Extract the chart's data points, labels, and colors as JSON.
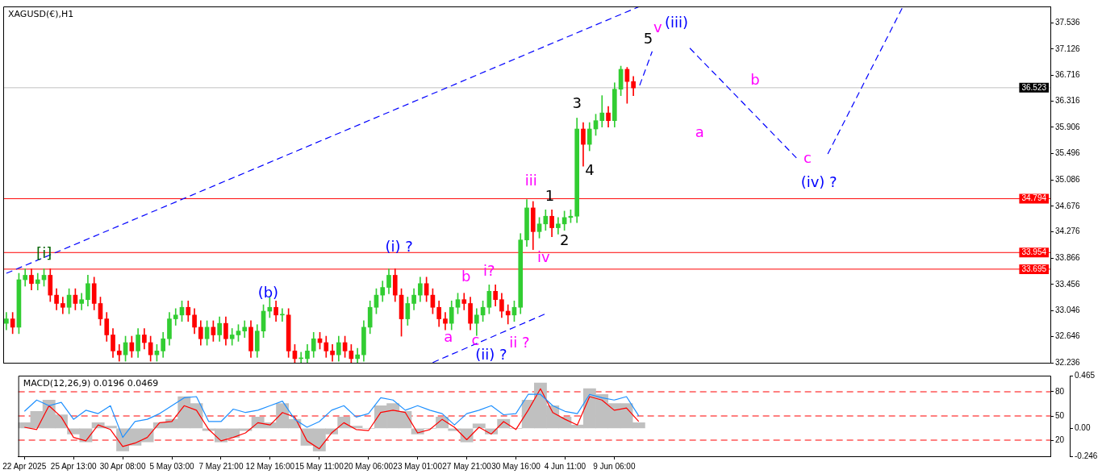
{
  "chart_data": [
    {
      "type": "candlestick",
      "title": "XAGUSD(€),H1",
      "tick_labels": "y",
      "ylim": [
        32.236,
        37.79
      ],
      "yticks": [
        32.236,
        32.646,
        33.046,
        33.456,
        33.866,
        34.276,
        34.676,
        35.086,
        35.496,
        35.906,
        36.316,
        36.716,
        37.126,
        37.536
      ],
      "categories": [
        null,
        null,
        null,
        null,
        null,
        null,
        null,
        null,
        null,
        null,
        null,
        null,
        null,
        null,
        null,
        null,
        null,
        null,
        null,
        null,
        null,
        null,
        null,
        null,
        null,
        null,
        null,
        null,
        null,
        null,
        null,
        null,
        null,
        null,
        null,
        null,
        null,
        null,
        null,
        null,
        null,
        null,
        null,
        null,
        null,
        null,
        null,
        null,
        null,
        null,
        null,
        null,
        null,
        null,
        null,
        null,
        null,
        null,
        null,
        null,
        null,
        null,
        null,
        null,
        null,
        null,
        null,
        null,
        null,
        null,
        null,
        null,
        null,
        null,
        null,
        null,
        null,
        null,
        null,
        null,
        null,
        null,
        null,
        null,
        null,
        null,
        null,
        null,
        null,
        null,
        null,
        null,
        null,
        null,
        null,
        null,
        null,
        null,
        null,
        null,
        null,
        null,
        null,
        null,
        null,
        null,
        null,
        null,
        null,
        null,
        null,
        null,
        null,
        null,
        null,
        null,
        null,
        null,
        null,
        null,
        null,
        null,
        null,
        null,
        null,
        null,
        null,
        null,
        null,
        null,
        null,
        null,
        null,
        null,
        null,
        null,
        null,
        null,
        null,
        null,
        null,
        null,
        null,
        null,
        null,
        null,
        null,
        null,
        null,
        null,
        null,
        null,
        null,
        null,
        null,
        null,
        null,
        null,
        null,
        null,
        null,
        null,
        null,
        null,
        null,
        null,
        null
      ],
      "ohlc": [
        [
          32.85,
          33.02,
          32.75,
          32.92
        ],
        [
          32.92,
          33.02,
          32.69,
          32.79
        ],
        [
          32.79,
          33.63,
          32.69,
          33.53
        ],
        [
          33.53,
          33.7,
          33.43,
          33.6
        ],
        [
          33.6,
          33.7,
          33.37,
          33.47
        ],
        [
          33.47,
          33.63,
          33.37,
          33.53
        ],
        [
          33.53,
          33.7,
          33.43,
          33.6
        ],
        [
          33.6,
          33.7,
          33.19,
          33.29
        ],
        [
          33.29,
          33.39,
          33.06,
          33.16
        ],
        [
          33.16,
          33.26,
          33.0,
          33.1
        ],
        [
          33.1,
          33.39,
          33.0,
          33.29
        ],
        [
          33.29,
          33.39,
          33.06,
          33.16
        ],
        [
          33.16,
          33.32,
          33.06,
          33.22
        ],
        [
          33.22,
          33.6,
          33.12,
          33.47
        ],
        [
          33.47,
          33.57,
          33.06,
          33.16
        ],
        [
          33.16,
          33.26,
          32.82,
          32.92
        ],
        [
          32.92,
          33.02,
          32.57,
          32.67
        ],
        [
          32.67,
          32.77,
          32.32,
          32.42
        ],
        [
          32.42,
          32.52,
          32.26,
          32.36
        ],
        [
          32.36,
          32.65,
          32.26,
          32.55
        ],
        [
          32.55,
          32.65,
          32.32,
          32.42
        ],
        [
          32.42,
          32.77,
          32.32,
          32.67
        ],
        [
          32.67,
          32.77,
          32.45,
          32.55
        ],
        [
          32.55,
          32.65,
          32.26,
          32.36
        ],
        [
          32.36,
          32.52,
          32.26,
          32.42
        ],
        [
          32.42,
          32.71,
          32.32,
          32.61
        ],
        [
          32.61,
          33.02,
          32.51,
          32.92
        ],
        [
          32.92,
          33.08,
          32.82,
          32.98
        ],
        [
          32.98,
          33.2,
          32.88,
          33.1
        ],
        [
          33.1,
          33.2,
          32.88,
          32.98
        ],
        [
          32.98,
          33.08,
          32.69,
          32.79
        ],
        [
          32.79,
          32.89,
          32.51,
          32.61
        ],
        [
          32.61,
          32.89,
          32.51,
          32.79
        ],
        [
          32.79,
          32.89,
          32.57,
          32.67
        ],
        [
          32.67,
          32.95,
          32.57,
          32.85
        ],
        [
          32.85,
          32.95,
          32.51,
          32.61
        ],
        [
          32.61,
          32.77,
          32.51,
          32.67
        ],
        [
          32.67,
          32.83,
          32.57,
          32.73
        ],
        [
          32.73,
          32.89,
          32.63,
          32.79
        ],
        [
          32.79,
          32.89,
          32.32,
          32.42
        ],
        [
          32.42,
          32.83,
          32.32,
          32.73
        ],
        [
          32.73,
          33.14,
          32.63,
          33.04
        ],
        [
          33.04,
          33.25,
          32.94,
          33.1
        ],
        [
          33.1,
          33.2,
          32.88,
          32.98
        ],
        [
          32.98,
          33.08,
          32.88,
          32.98
        ],
        [
          32.98,
          33.08,
          32.32,
          32.42
        ],
        [
          32.42,
          32.52,
          32.24,
          32.3
        ],
        [
          32.3,
          32.4,
          32.24,
          32.3
        ],
        [
          32.3,
          32.52,
          32.24,
          32.42
        ],
        [
          32.42,
          32.71,
          32.32,
          32.61
        ],
        [
          32.61,
          32.71,
          32.45,
          32.55
        ],
        [
          32.55,
          32.65,
          32.32,
          32.42
        ],
        [
          32.42,
          32.52,
          32.26,
          32.36
        ],
        [
          32.36,
          32.65,
          32.26,
          32.55
        ],
        [
          32.55,
          32.65,
          32.32,
          32.42
        ],
        [
          32.42,
          32.52,
          32.24,
          32.3
        ],
        [
          32.3,
          32.46,
          32.24,
          32.36
        ],
        [
          32.36,
          32.89,
          32.26,
          32.79
        ],
        [
          32.79,
          33.2,
          32.69,
          33.1
        ],
        [
          33.1,
          33.39,
          33.0,
          33.29
        ],
        [
          33.29,
          33.51,
          33.19,
          33.41
        ],
        [
          33.41,
          33.7,
          33.31,
          33.6
        ],
        [
          33.6,
          33.7,
          33.19,
          33.29
        ],
        [
          33.29,
          33.39,
          32.65,
          32.92
        ],
        [
          32.92,
          33.26,
          32.82,
          33.16
        ],
        [
          33.16,
          33.39,
          33.06,
          33.29
        ],
        [
          33.29,
          33.57,
          33.19,
          33.47
        ],
        [
          33.47,
          33.57,
          33.19,
          33.29
        ],
        [
          33.29,
          33.39,
          33.0,
          33.1
        ],
        [
          33.1,
          33.2,
          32.8,
          32.92
        ],
        [
          32.92,
          33.02,
          32.75,
          32.85
        ],
        [
          32.85,
          33.2,
          32.75,
          33.1
        ],
        [
          33.1,
          33.32,
          33.0,
          33.22
        ],
        [
          33.22,
          33.32,
          33.06,
          33.16
        ],
        [
          33.16,
          33.26,
          32.75,
          32.85
        ],
        [
          32.85,
          33.08,
          32.66,
          32.98
        ],
        [
          32.98,
          33.2,
          32.88,
          33.1
        ],
        [
          33.1,
          33.45,
          33.0,
          33.35
        ],
        [
          33.35,
          33.45,
          33.12,
          33.22
        ],
        [
          33.22,
          33.32,
          32.94,
          33.04
        ],
        [
          33.04,
          33.14,
          32.84,
          32.98
        ],
        [
          32.98,
          33.2,
          32.88,
          33.1
        ],
        [
          33.1,
          34.25,
          33.0,
          34.15
        ],
        [
          34.15,
          34.78,
          34.05,
          34.65
        ],
        [
          34.65,
          34.75,
          34.0,
          34.28
        ],
        [
          34.28,
          34.5,
          34.18,
          34.4
        ],
        [
          34.4,
          34.62,
          34.3,
          34.52
        ],
        [
          34.52,
          34.62,
          34.2,
          34.34
        ],
        [
          34.34,
          34.5,
          34.24,
          34.4
        ],
        [
          34.4,
          34.6,
          34.3,
          34.5
        ],
        [
          34.5,
          34.62,
          34.42,
          34.52
        ],
        [
          34.52,
          36.05,
          34.42,
          35.88
        ],
        [
          35.88,
          35.98,
          35.3,
          35.64
        ],
        [
          35.64,
          35.98,
          35.54,
          35.88
        ],
        [
          35.88,
          36.11,
          35.78,
          36.01
        ],
        [
          36.01,
          36.4,
          35.91,
          36.13
        ],
        [
          36.13,
          36.23,
          35.91,
          36.01
        ],
        [
          36.01,
          36.6,
          35.91,
          36.5
        ],
        [
          36.5,
          36.86,
          36.4,
          36.81
        ],
        [
          36.81,
          36.84,
          36.28,
          36.62
        ],
        [
          36.62,
          36.7,
          36.4,
          36.52
        ],
        null,
        null,
        null,
        null,
        null,
        null,
        null,
        null,
        null,
        null,
        null,
        null,
        null,
        null,
        null,
        null,
        null,
        null,
        null,
        null,
        null,
        null,
        null,
        null,
        null,
        null,
        null,
        null,
        null,
        null,
        null,
        null,
        null,
        null,
        null,
        null,
        null,
        null,
        null,
        null,
        null,
        null,
        null,
        null,
        null,
        null,
        null,
        null,
        null,
        null,
        null,
        null,
        null,
        null,
        null,
        null,
        null,
        null,
        null,
        null,
        null,
        null,
        null,
        null,
        null,
        null
      ],
      "series": [
        {
          "type": "line",
          "color": "#0000ff",
          "line_style": "dashed",
          "values": [
            33.63,
            null,
            null,
            null,
            null,
            null,
            null,
            null,
            null,
            null,
            null,
            null,
            null,
            null,
            null,
            null,
            null,
            null,
            null,
            null,
            null,
            null,
            null,
            null,
            null,
            null,
            null,
            null,
            null,
            null,
            null,
            null,
            null,
            null,
            null,
            null,
            null,
            null,
            null,
            null,
            null,
            null,
            null,
            null,
            null,
            null,
            null,
            null,
            null,
            null,
            null,
            null,
            null,
            null,
            null,
            null,
            null,
            null,
            null,
            null,
            null,
            null,
            null,
            null,
            null,
            null,
            null,
            null,
            null,
            null,
            null,
            null,
            null,
            null,
            null,
            null,
            null,
            null,
            null,
            null,
            null,
            null,
            null,
            null,
            null,
            null,
            null,
            null,
            null,
            null,
            null,
            null,
            null,
            null,
            null,
            null,
            null,
            null,
            null,
            null,
            null,
            37.79,
            null,
            null,
            null,
            null,
            null,
            null,
            null,
            null,
            null,
            null,
            null,
            null,
            null,
            null,
            null,
            null,
            null,
            null,
            null,
            null,
            null,
            null,
            null,
            null,
            null,
            null,
            null,
            null,
            null,
            null,
            null,
            null,
            null,
            null,
            null,
            null,
            null,
            null,
            null,
            null,
            null,
            null,
            null,
            null,
            null,
            null,
            null,
            null,
            null,
            null,
            null,
            null,
            null,
            null,
            null,
            null,
            null,
            null,
            null,
            null,
            null,
            null,
            null,
            null,
            null
          ]
        },
        {
          "type": "line",
          "color": "#0000ff",
          "line_style": "dashed",
          "values": [
            null,
            null,
            null,
            null,
            null,
            null,
            null,
            null,
            null,
            null,
            null,
            null,
            null,
            null,
            null,
            null,
            null,
            null,
            null,
            null,
            null,
            null,
            null,
            null,
            null,
            null,
            null,
            null,
            null,
            null,
            null,
            null,
            null,
            null,
            null,
            null,
            null,
            null,
            null,
            null,
            null,
            null,
            null,
            null,
            null,
            null,
            null,
            null,
            null,
            null,
            null,
            null,
            null,
            null,
            null,
            null,
            null,
            null,
            null,
            null,
            null,
            null,
            null,
            null,
            null,
            null,
            null,
            null,
            32.24,
            null,
            null,
            null,
            null,
            null,
            null,
            null,
            null,
            null,
            null,
            null,
            null,
            null,
            null,
            null,
            null,
            null,
            33.0,
            null,
            null,
            null,
            null,
            null,
            null,
            null,
            null,
            null,
            null,
            null,
            null,
            null,
            null,
            null,
            null,
            null,
            null,
            null,
            null,
            null,
            null,
            null,
            null,
            null,
            null,
            null,
            null,
            null,
            null,
            null,
            null,
            null,
            null,
            null,
            null,
            null,
            null,
            null,
            null,
            null,
            null,
            null,
            null,
            null,
            null,
            null,
            null,
            null,
            null,
            null,
            null,
            null,
            null,
            null,
            null,
            null,
            null,
            null,
            null,
            null,
            null,
            null,
            null,
            null,
            null,
            null,
            null,
            null,
            null,
            null,
            null,
            null,
            null,
            null,
            null,
            null,
            null,
            null,
            null
          ]
        },
        {
          "type": "line",
          "color": "#0000ff",
          "line_style": "dashed",
          "values": [
            null,
            null,
            null,
            null,
            null,
            null,
            null,
            null,
            null,
            null,
            null,
            null,
            null,
            null,
            null,
            null,
            null,
            null,
            null,
            null,
            null,
            null,
            null,
            null,
            null,
            null,
            null,
            null,
            null,
            null,
            null,
            null,
            null,
            null,
            null,
            null,
            null,
            null,
            null,
            null,
            null,
            null,
            null,
            null,
            null,
            null,
            null,
            null,
            null,
            null,
            null,
            null,
            null,
            null,
            null,
            null,
            null,
            null,
            null,
            null,
            null,
            null,
            null,
            null,
            null,
            null,
            null,
            null,
            null,
            null,
            null,
            null,
            null,
            null,
            null,
            null,
            null,
            null,
            null,
            null,
            null,
            null,
            null,
            null,
            null,
            null,
            null,
            null,
            null,
            null,
            null,
            null,
            null,
            null,
            null,
            null,
            null,
            null,
            null,
            null,
            null,
            36.56,
            null,
            37.09,
            null,
            null,
            null,
            null,
            null,
            null,
            null,
            null,
            null,
            null,
            null,
            null,
            null,
            null,
            null,
            null,
            null,
            null,
            null,
            null,
            null,
            null,
            null,
            null,
            null,
            null,
            null,
            null,
            null,
            null,
            null,
            null,
            null,
            null,
            null,
            null,
            null,
            null,
            null,
            null,
            null,
            null,
            null,
            null,
            null,
            null,
            null,
            null,
            null,
            null,
            null,
            null,
            null,
            null,
            null,
            null,
            null,
            null,
            null,
            null,
            null,
            null,
            null
          ]
        },
        {
          "type": "line",
          "color": "#0000ff",
          "line_style": "dashed",
          "values": [
            null,
            null,
            null,
            null,
            null,
            null,
            null,
            null,
            null,
            null,
            null,
            null,
            null,
            null,
            null,
            null,
            null,
            null,
            null,
            null,
            null,
            null,
            null,
            null,
            null,
            null,
            null,
            null,
            null,
            null,
            null,
            null,
            null,
            null,
            null,
            null,
            null,
            null,
            null,
            null,
            null,
            null,
            null,
            null,
            null,
            null,
            null,
            null,
            null,
            null,
            null,
            null,
            null,
            null,
            null,
            null,
            null,
            null,
            null,
            null,
            null,
            null,
            null,
            null,
            null,
            null,
            null,
            null,
            null,
            null,
            null,
            null,
            null,
            null,
            null,
            null,
            null,
            null,
            null,
            null,
            null,
            null,
            null,
            null,
            null,
            null,
            null,
            null,
            null,
            null,
            null,
            null,
            null,
            null,
            null,
            null,
            null,
            null,
            null,
            null,
            null,
            null,
            null,
            null,
            null,
            null,
            null,
            null,
            null,
            37.14,
            null,
            null,
            null,
            null,
            null,
            null,
            null,
            null,
            null,
            null,
            null,
            null,
            null,
            null,
            null,
            null,
            35.43,
            null,
            null,
            null,
            null,
            null,
            null,
            null,
            null,
            null,
            null,
            null,
            null,
            null,
            null,
            null,
            null,
            null,
            null,
            null,
            null,
            null,
            null,
            null,
            null,
            null,
            null,
            null,
            null,
            null,
            null,
            null,
            null,
            null,
            null,
            null,
            null,
            null,
            null,
            null,
            null
          ]
        },
        {
          "type": "line",
          "color": "#0000ff",
          "line_style": "dashed",
          "values": [
            null,
            null,
            null,
            null,
            null,
            null,
            null,
            null,
            null,
            null,
            null,
            null,
            null,
            null,
            null,
            null,
            null,
            null,
            null,
            null,
            null,
            null,
            null,
            null,
            null,
            null,
            null,
            null,
            null,
            null,
            null,
            null,
            null,
            null,
            null,
            null,
            null,
            null,
            null,
            null,
            null,
            null,
            null,
            null,
            null,
            null,
            null,
            null,
            null,
            null,
            null,
            null,
            null,
            null,
            null,
            null,
            null,
            null,
            null,
            null,
            null,
            null,
            null,
            null,
            null,
            null,
            null,
            null,
            null,
            null,
            null,
            null,
            null,
            null,
            null,
            null,
            null,
            null,
            null,
            null,
            null,
            null,
            null,
            null,
            null,
            null,
            null,
            null,
            null,
            null,
            null,
            null,
            null,
            null,
            null,
            null,
            null,
            null,
            null,
            null,
            null,
            null,
            null,
            null,
            null,
            null,
            null,
            null,
            null,
            null,
            null,
            null,
            null,
            null,
            null,
            null,
            null,
            null,
            null,
            null,
            null,
            null,
            null,
            null,
            null,
            null,
            null,
            null,
            null,
            null,
            null,
            35.49,
            null,
            null,
            null,
            null,
            null,
            null,
            null,
            null,
            null,
            null,
            null,
            37.79,
            null,
            null,
            null,
            null,
            null,
            null,
            null,
            null,
            null,
            null,
            null,
            null,
            null,
            null,
            null,
            null,
            null,
            null,
            null,
            null,
            null,
            null,
            null
          ]
        }
      ],
      "ref_lines": [
        {
          "axis": "y",
          "value": 34.794,
          "label": "34.794",
          "color": "#ff0000"
        },
        {
          "axis": "y",
          "value": 33.954,
          "label": "33.954",
          "color": "#ff0000"
        },
        {
          "axis": "y",
          "value": 33.695,
          "label": "33.695",
          "color": "#ff0000"
        },
        {
          "axis": "y",
          "value": 36.523,
          "label": "36.523",
          "color": "#c0c0c0"
        }
      ],
      "annotations": [
        "[i]",
        "(b)",
        "(i) ?",
        "a",
        "b",
        "c",
        "i?",
        "(ii) ?",
        "ii ?",
        "iii",
        "1",
        "iv",
        "2",
        "3",
        "4",
        "5",
        "v",
        "(iii)",
        "a",
        "b",
        "c",
        "(iv) ?"
      ]
    },
    {
      "type": "line",
      "title": "MACD(12,26,9) 0.0196 0.0469",
      "categories": [
        "22 Apr 2025",
        null,
        null,
        null,
        "25 Apr 13:00",
        null,
        null,
        null,
        "30 Apr 08:00",
        null,
        null,
        null,
        "5 May 03:00",
        null,
        null,
        null,
        "7 May 21:00",
        null,
        null,
        null,
        "12 May 16:00",
        null,
        null,
        null,
        "15 May 11:00",
        null,
        null,
        null,
        "20 May 06:00",
        null,
        null,
        null,
        "23 May 01:00",
        null,
        null,
        null,
        "27 May 21:00",
        null,
        null,
        null,
        "30 May 16:00",
        null,
        null,
        null,
        "4 Jun 11:00",
        null,
        null,
        null,
        "9 Jun 06:00",
        null,
        null,
        null,
        null,
        null,
        null,
        null,
        null,
        null,
        null,
        null,
        null,
        null,
        null,
        null,
        null,
        null,
        null,
        null,
        null,
        null,
        null,
        null,
        null,
        null,
        null,
        null,
        null,
        null,
        null,
        null,
        null,
        null,
        null,
        null
      ],
      "ylim": [
        -0.246,
        0.465
      ],
      "yticks": [
        -0.246,
        {
          "value": 0,
          "label": "0.00"
        },
        0.465
      ],
      "y2lim": [
        0,
        100
      ],
      "y2ticks": [
        20,
        50,
        80
      ],
      "series": [
        {
          "type": "bar",
          "color": "#c0c0c0",
          "values": [
            0.05,
            0.15,
            0.25,
            0.12,
            -0.05,
            -0.12,
            0.05,
            0.02,
            -0.2,
            -0.15,
            -0.12,
            0.05,
            0.08,
            0.28,
            0.22,
            -0.02,
            -0.12,
            -0.08,
            -0.02,
            0.1,
            0.05,
            0.22,
            0.08,
            -0.15,
            -0.2,
            -0.05,
            0.1,
            0.02,
            0.0,
            0.2,
            0.22,
            0.15,
            -0.05,
            0.0,
            0.1,
            -0.02,
            -0.12,
            0.04,
            -0.05,
            0.08,
            0.0,
            0.25,
            0.4,
            0.2,
            0.1,
            0.03,
            0.35,
            0.3,
            0.22,
            0.22,
            0.05,
            null,
            null,
            null,
            null,
            null,
            null,
            null,
            null,
            null,
            null,
            null,
            null,
            null,
            null,
            null,
            null,
            null,
            null,
            null,
            null,
            null,
            null,
            null,
            null,
            null,
            null,
            null,
            null,
            null,
            null,
            null,
            null,
            null
          ]
        },
        {
          "type": "line",
          "color": "#1e90ff",
          "values": [
            0.15,
            0.25,
            0.2,
            0.23,
            0.08,
            0.16,
            0.13,
            0.2,
            -0.08,
            0.06,
            0.08,
            0.13,
            0.2,
            0.27,
            0.28,
            0.06,
            0.06,
            0.17,
            0.14,
            0.16,
            0.2,
            0.24,
            0.08,
            0.01,
            0.06,
            0.16,
            0.2,
            0.1,
            0.13,
            0.27,
            0.25,
            0.16,
            0.2,
            0.16,
            0.13,
            0.03,
            0.13,
            0.16,
            0.2,
            0.12,
            0.13,
            0.3,
            0.3,
            0.2,
            0.15,
            0.13,
            0.3,
            0.27,
            0.25,
            0.28,
            0.11,
            null,
            null,
            null,
            null,
            null,
            null,
            null,
            null,
            null,
            null,
            null,
            null,
            null,
            null,
            null,
            null,
            null,
            null,
            null,
            null,
            null,
            null,
            null,
            null,
            null,
            null,
            null,
            null,
            null,
            null,
            null,
            null,
            null
          ]
        },
        {
          "type": "line",
          "color": "#ff0000",
          "values": [
            0.01,
            -0.01,
            0.2,
            0.1,
            -0.08,
            -0.11,
            0.03,
            -0.01,
            -0.16,
            -0.13,
            -0.08,
            0.05,
            0.06,
            0.2,
            0.16,
            -0.01,
            -0.11,
            -0.08,
            -0.04,
            0.05,
            0.03,
            0.14,
            0.1,
            -0.11,
            -0.18,
            -0.04,
            0.05,
            -0.01,
            -0.02,
            0.14,
            0.16,
            0.14,
            -0.04,
            -0.01,
            0.08,
            0.01,
            -0.1,
            0.01,
            -0.05,
            0.06,
            -0.01,
            0.16,
            0.35,
            0.14,
            0.08,
            0.03,
            0.28,
            0.25,
            0.16,
            0.18,
            0.06,
            null,
            null,
            null,
            null,
            null,
            null,
            null,
            null,
            null,
            null,
            null,
            null,
            null,
            null,
            null,
            null,
            null,
            null,
            null,
            null,
            null,
            null,
            null,
            null,
            null,
            null,
            null,
            null,
            null,
            null,
            null,
            null,
            null
          ]
        }
      ],
      "ref_lines": [
        {
          "axis": "y2",
          "value": 80,
          "color": "#ff0000",
          "line_style": "dashed"
        },
        {
          "axis": "y2",
          "value": 50,
          "color": "#ff0000",
          "line_style": "dashed"
        },
        {
          "axis": "y2",
          "value": 20,
          "color": "#ff0000",
          "line_style": "dashed"
        }
      ]
    }
  ]
}
